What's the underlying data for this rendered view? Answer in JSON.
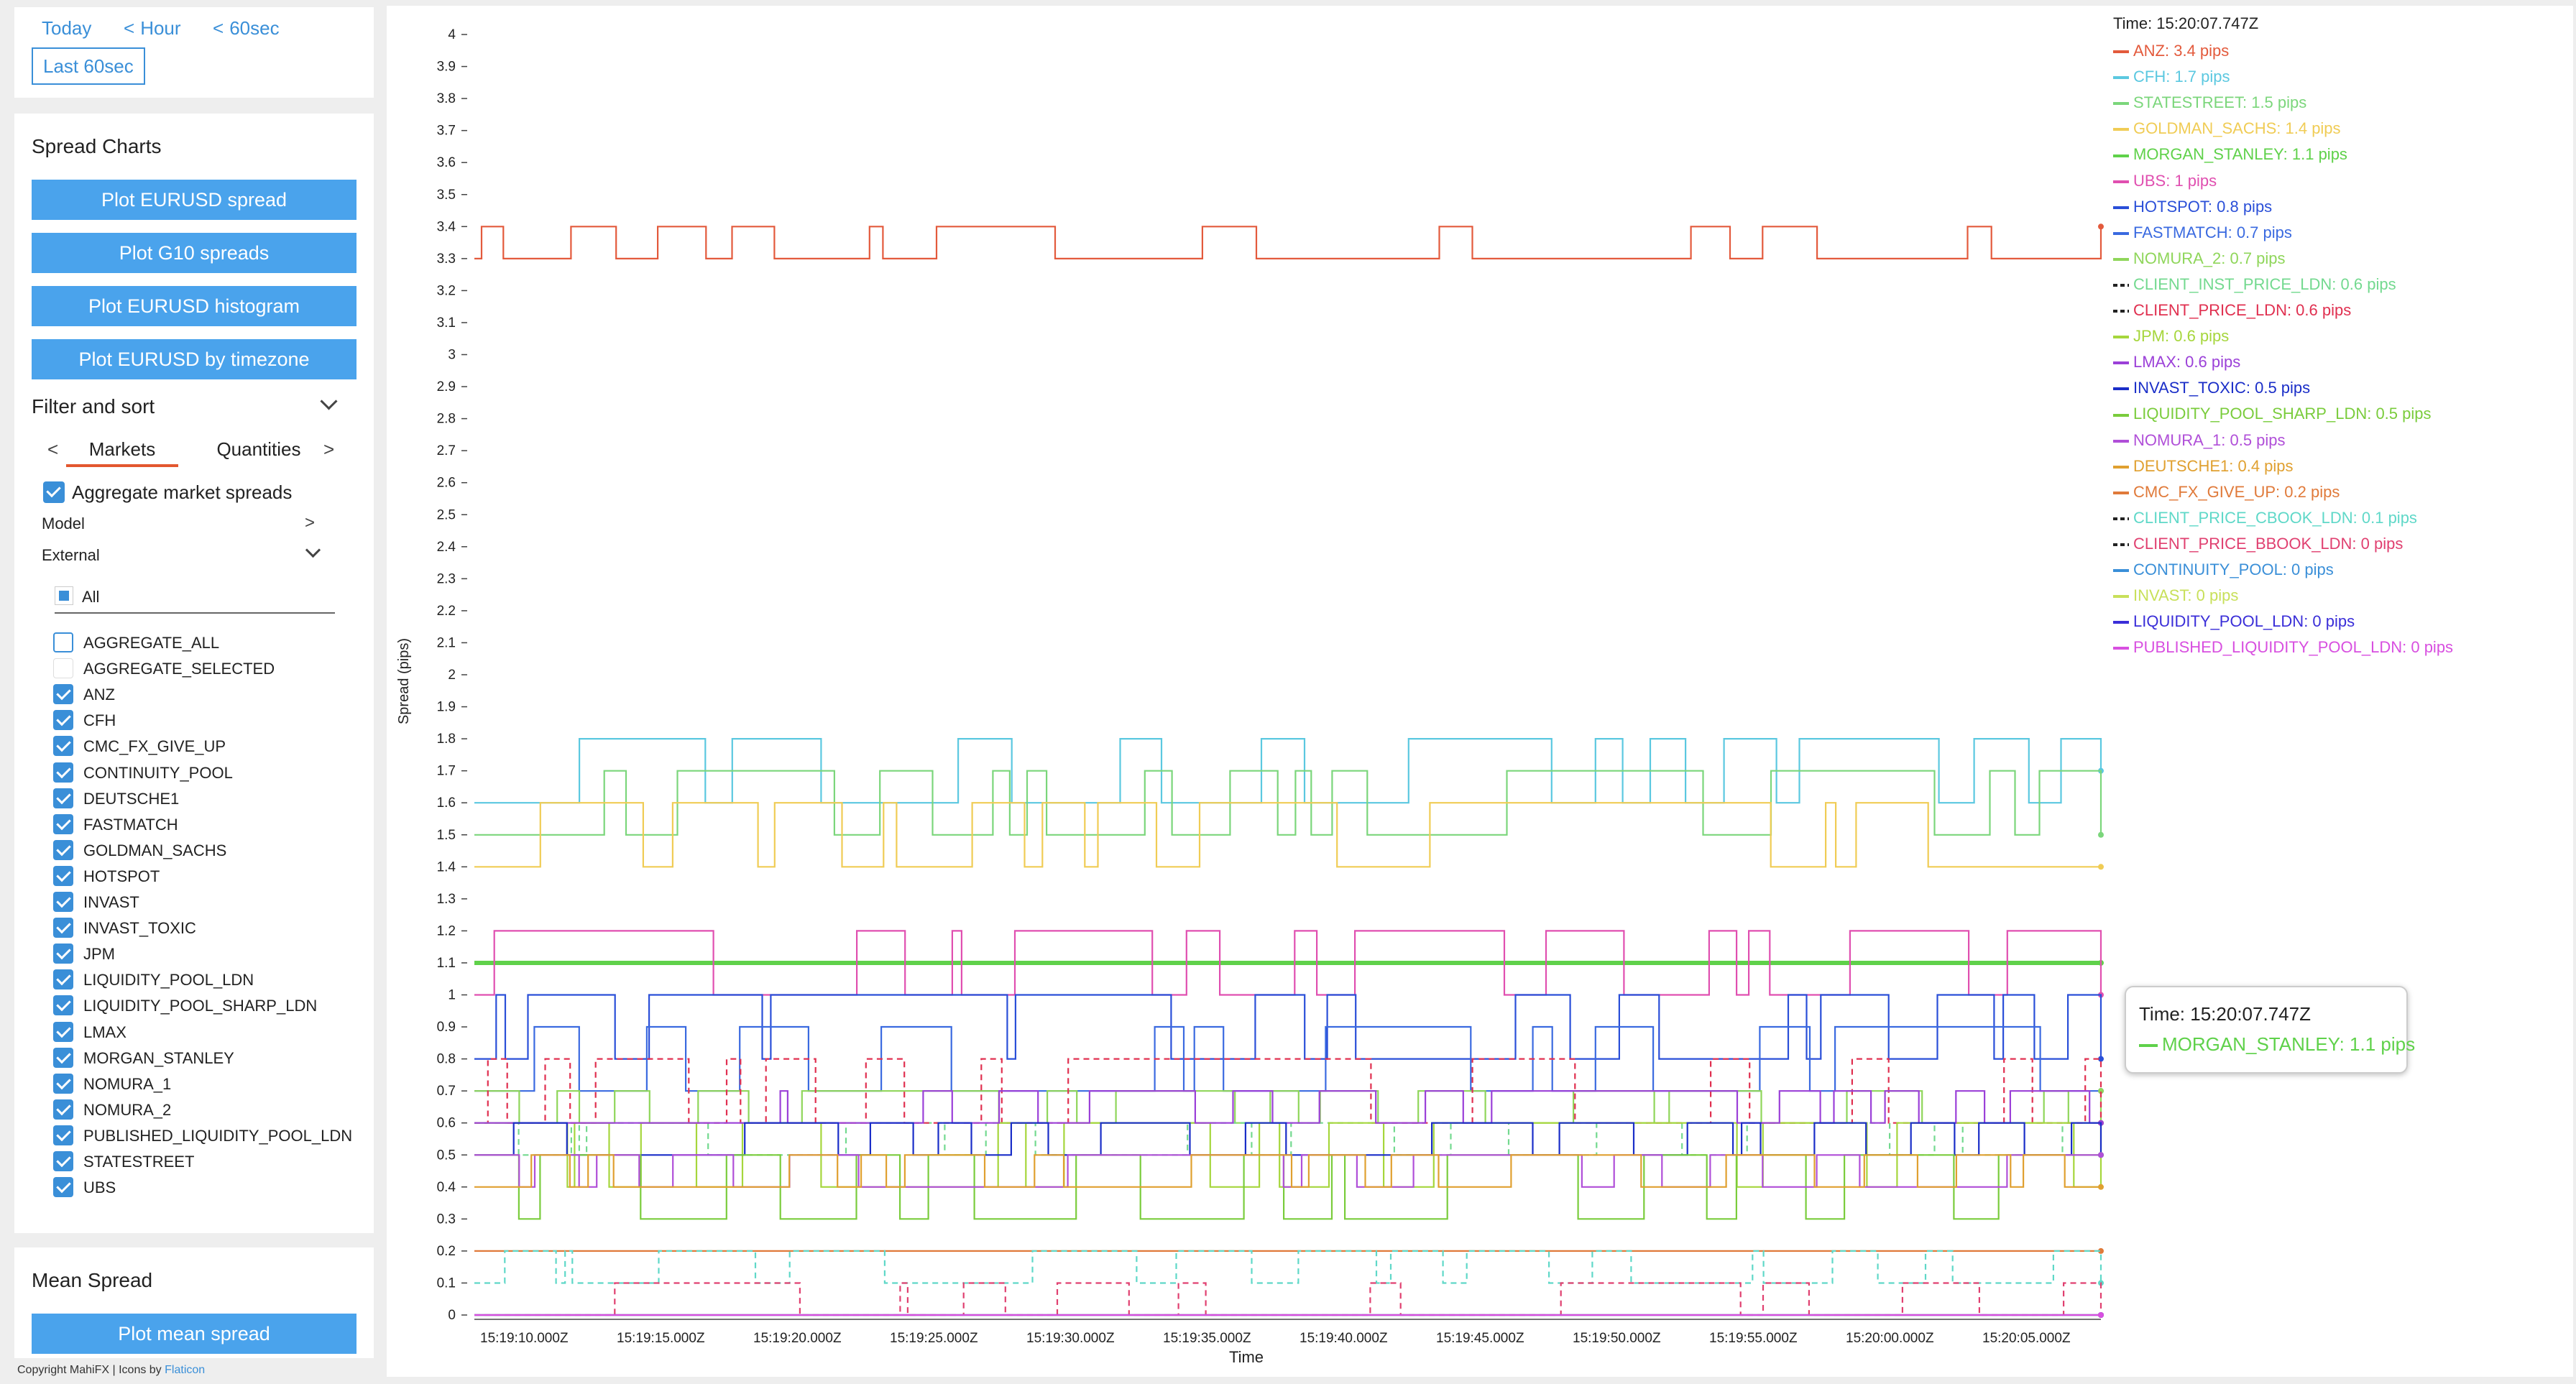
{
  "time_controls": {
    "today": "Today",
    "hour": "Hour",
    "sixty_sec": "60sec",
    "last_60": "Last 60sec"
  },
  "spread_charts": {
    "title": "Spread Charts",
    "buttons": [
      "Plot EURUSD spread",
      "Plot G10 spreads",
      "Plot EURUSD histogram",
      "Plot EURUSD by timezone"
    ]
  },
  "filter": {
    "title": "Filter and sort",
    "tabs": [
      "Markets",
      "Quantities"
    ],
    "aggregate_label": "Aggregate market spreads",
    "model_label": "Model",
    "external_label": "External",
    "all_label": "All",
    "markets": [
      {
        "name": "AGGREGATE_ALL",
        "checked": false
      },
      {
        "name": "AGGREGATE_SELECTED",
        "checked": null
      },
      {
        "name": "ANZ",
        "checked": true
      },
      {
        "name": "CFH",
        "checked": true
      },
      {
        "name": "CMC_FX_GIVE_UP",
        "checked": true
      },
      {
        "name": "CONTINUITY_POOL",
        "checked": true
      },
      {
        "name": "DEUTSCHE1",
        "checked": true
      },
      {
        "name": "FASTMATCH",
        "checked": true
      },
      {
        "name": "GOLDMAN_SACHS",
        "checked": true
      },
      {
        "name": "HOTSPOT",
        "checked": true
      },
      {
        "name": "INVAST",
        "checked": true
      },
      {
        "name": "INVAST_TOXIC",
        "checked": true
      },
      {
        "name": "JPM",
        "checked": true
      },
      {
        "name": "LIQUIDITY_POOL_LDN",
        "checked": true
      },
      {
        "name": "LIQUIDITY_POOL_SHARP_LDN",
        "checked": true
      },
      {
        "name": "LMAX",
        "checked": true
      },
      {
        "name": "MORGAN_STANLEY",
        "checked": true
      },
      {
        "name": "NOMURA_1",
        "checked": true
      },
      {
        "name": "NOMURA_2",
        "checked": true
      },
      {
        "name": "PUBLISHED_LIQUIDITY_POOL_LDN",
        "checked": true
      },
      {
        "name": "STATESTREET",
        "checked": true
      },
      {
        "name": "UBS",
        "checked": true
      }
    ]
  },
  "mean_spread": {
    "title": "Mean Spread",
    "button": "Plot mean spread"
  },
  "footer": {
    "copyright": "Copyright MahiFX | Icons by",
    "link": "Flaticon"
  },
  "tooltip": {
    "time": "Time: 15:20:07.747Z",
    "series_label": "MORGAN_STANLEY: 1.1 pips",
    "color": "#5fd14a"
  },
  "chart_data": {
    "type": "line",
    "xlabel": "Time",
    "ylabel": "Spread (pips)",
    "ylim": [
      0,
      4
    ],
    "yticks": [
      "0",
      "0.1",
      "0.2",
      "0.3",
      "0.4",
      "0.5",
      "0.6",
      "0.7",
      "0.8",
      "0.9",
      "1",
      "1.1",
      "1.2",
      "1.3",
      "1.4",
      "1.5",
      "1.6",
      "1.7",
      "1.8",
      "1.9",
      "2",
      "2.1",
      "2.2",
      "2.3",
      "2.4",
      "2.5",
      "2.6",
      "2.7",
      "2.8",
      "2.9",
      "3",
      "3.1",
      "3.2",
      "3.3",
      "3.4",
      "3.5",
      "3.6",
      "3.7",
      "3.8",
      "3.9",
      "4"
    ],
    "xticks": [
      "15:19:10.000Z",
      "15:19:15.000Z",
      "15:19:20.000Z",
      "15:19:25.000Z",
      "15:19:30.000Z",
      "15:19:35.000Z",
      "15:19:40.000Z",
      "15:19:45.000Z",
      "15:19:50.000Z",
      "15:19:55.000Z",
      "15:20:00.000Z",
      "15:20:05.000Z"
    ],
    "legend_title": "Time: 15:20:07.747Z",
    "legend_position": "top-right",
    "series": [
      {
        "name": "ANZ",
        "label": "ANZ: 3.4 pips",
        "color": "#e35a3c",
        "base": 3.3,
        "alt": 3.4,
        "value": 3.4
      },
      {
        "name": "CFH",
        "label": "CFH: 1.7 pips",
        "color": "#5bc8e0",
        "base": 1.6,
        "alt": 1.8,
        "value": 1.7
      },
      {
        "name": "STATESTREET",
        "label": "STATESTREET: 1.5 pips",
        "color": "#7bd67b",
        "base": 1.5,
        "alt": 1.7,
        "value": 1.5
      },
      {
        "name": "GOLDMAN_SACHS",
        "label": "GOLDMAN_SACHS: 1.4 pips",
        "color": "#f0cc55",
        "base": 1.4,
        "alt": 1.6,
        "value": 1.4
      },
      {
        "name": "MORGAN_STANLEY",
        "label": "MORGAN_STANLEY: 1.1 pips",
        "color": "#5fd14a",
        "base": 1.1,
        "alt": 1.1,
        "value": 1.1
      },
      {
        "name": "UBS",
        "label": "UBS: 1 pips",
        "color": "#e04fb0",
        "base": 1.0,
        "alt": 1.2,
        "value": 1.0
      },
      {
        "name": "HOTSPOT",
        "label": "HOTSPOT: 0.8 pips",
        "color": "#2a4fd8",
        "base": 0.8,
        "alt": 1.0,
        "value": 0.8
      },
      {
        "name": "FASTMATCH",
        "label": "FASTMATCH: 0.7 pips",
        "color": "#3a6ae0",
        "base": 0.7,
        "alt": 0.9,
        "value": 0.7
      },
      {
        "name": "NOMURA_2",
        "label": "NOMURA_2: 0.7 pips",
        "color": "#8fd65a",
        "base": 0.7,
        "alt": 0.6,
        "value": 0.7
      },
      {
        "name": "CLIENT_INST_PRICE_LDN",
        "label": "CLIENT_INST_PRICE_LDN: 0.6 pips",
        "color": "#73d98f",
        "base": 0.6,
        "alt": 0.5,
        "value": 0.6,
        "dashed": true
      },
      {
        "name": "CLIENT_PRICE_LDN",
        "label": "CLIENT_PRICE_LDN: 0.6 pips",
        "color": "#e03050",
        "base": 0.6,
        "alt": 0.8,
        "value": 0.6,
        "dashed": true
      },
      {
        "name": "JPM",
        "label": "JPM: 0.6 pips",
        "color": "#a6d63c",
        "base": 0.6,
        "alt": 0.4,
        "value": 0.6
      },
      {
        "name": "LMAX",
        "label": "LMAX: 0.6 pips",
        "color": "#9b40d8",
        "base": 0.6,
        "alt": 0.7,
        "value": 0.6
      },
      {
        "name": "INVAST_TOXIC",
        "label": "INVAST_TOXIC: 0.5 pips",
        "color": "#1a2ec8",
        "base": 0.5,
        "alt": 0.6,
        "value": 0.5
      },
      {
        "name": "LIQUIDITY_POOL_SHARP_LDN",
        "label": "LIQUIDITY_POOL_SHARP_LDN: 0.5 pips",
        "color": "#7acc3c",
        "base": 0.5,
        "alt": 0.3,
        "value": 0.5
      },
      {
        "name": "NOMURA_1",
        "label": "NOMURA_1: 0.5 pips",
        "color": "#b04fd8",
        "base": 0.5,
        "alt": 0.4,
        "value": 0.5
      },
      {
        "name": "DEUTSCHE1",
        "label": "DEUTSCHE1: 0.4 pips",
        "color": "#e0a030",
        "base": 0.4,
        "alt": 0.5,
        "value": 0.4
      },
      {
        "name": "CMC_FX_GIVE_UP",
        "label": "CMC_FX_GIVE_UP: 0.2 pips",
        "color": "#e07a3a",
        "base": 0.2,
        "alt": 0.2,
        "value": 0.2
      },
      {
        "name": "CLIENT_PRICE_CBOOK_LDN",
        "label": "CLIENT_PRICE_CBOOK_LDN: 0.1 pips",
        "color": "#5fd8c8",
        "base": 0.1,
        "alt": 0.2,
        "value": 0.1,
        "dashed": true
      },
      {
        "name": "CLIENT_PRICE_BBOOK_LDN",
        "label": "CLIENT_PRICE_BBOOK_LDN: 0 pips",
        "color": "#e04070",
        "base": 0.0,
        "alt": 0.1,
        "value": 0.0,
        "dashed": true
      },
      {
        "name": "CONTINUITY_POOL",
        "label": "CONTINUITY_POOL: 0 pips",
        "color": "#3a8fd8",
        "base": 0.0,
        "alt": 0.0,
        "value": 0.0
      },
      {
        "name": "INVAST",
        "label": "INVAST: 0 pips",
        "color": "#c8e05a",
        "base": 0.0,
        "alt": 0.0,
        "value": 0.0
      },
      {
        "name": "LIQUIDITY_POOL_LDN",
        "label": "LIQUIDITY_POOL_LDN: 0 pips",
        "color": "#3a2ed8",
        "base": 0.0,
        "alt": 0.0,
        "value": 0.0
      },
      {
        "name": "PUBLISHED_LIQUIDITY_POOL_LDN",
        "label": "PUBLISHED_LIQUIDITY_POOL_LDN: 0 pips",
        "color": "#d84fe0",
        "base": 0.0,
        "alt": 0.0,
        "value": 0.0
      }
    ]
  }
}
